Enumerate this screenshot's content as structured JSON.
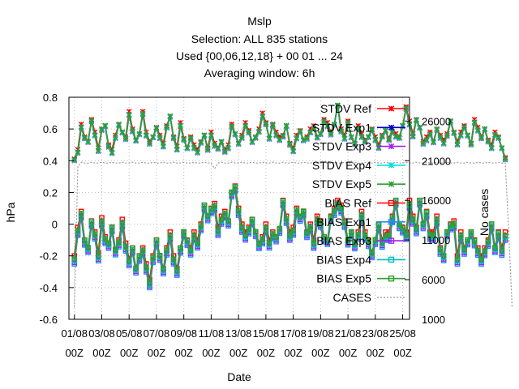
{
  "title_lines": [
    "Mslp",
    "Selection: ALL    835 stations",
    "Used {00,06,12,18} + 00 01 ... 24",
    "Averaging window:  6h"
  ],
  "chart_data": {
    "type": "line",
    "title": "Mslp",
    "xlabel": "Date",
    "ylabel": "hPa",
    "y2label": "No cases",
    "ylim": [
      -0.6,
      0.8
    ],
    "y2lim": [
      1000,
      29000
    ],
    "yticks": [
      "0.8",
      "0.6",
      "0.4",
      "0.2",
      "0",
      "-0.2",
      "-0.4",
      "-0.6"
    ],
    "y2ticks": [
      "26000",
      "21000",
      "16000",
      "11000",
      "6000",
      "1000"
    ],
    "y2tick_values": [
      26000,
      21000,
      16000,
      11000,
      6000,
      1000
    ],
    "xticks": [
      {
        "day": 1,
        "l1": "01/08",
        "l2": "00Z"
      },
      {
        "day": 3,
        "l1": "03/08",
        "l2": "00Z"
      },
      {
        "day": 5,
        "l1": "05/08",
        "l2": "00Z"
      },
      {
        "day": 7,
        "l1": "07/08",
        "l2": "00Z"
      },
      {
        "day": 9,
        "l1": "09/08",
        "l2": "00Z"
      },
      {
        "day": 11,
        "l1": "11/08",
        "l2": "00Z"
      },
      {
        "day": 13,
        "l1": "13/08",
        "l2": "00Z"
      },
      {
        "day": 15,
        "l1": "15/08",
        "l2": "00Z"
      },
      {
        "day": 17,
        "l1": "17/08",
        "l2": "00Z"
      },
      {
        "day": 19,
        "l1": "19/08",
        "l2": "00Z"
      },
      {
        "day": 21,
        "l1": "21/08",
        "l2": "00Z"
      },
      {
        "day": 23,
        "l1": "23/08",
        "l2": "00Z"
      },
      {
        "day": 25,
        "l1": "25/08",
        "l2": "00Z"
      }
    ],
    "grid": true,
    "legend_position": "top-right",
    "step_hours": 6,
    "x_start_day": 1.0,
    "stdv_ref": [
      0.41,
      0.47,
      0.63,
      0.55,
      0.52,
      0.66,
      0.58,
      0.48,
      0.6,
      0.62,
      0.5,
      0.47,
      0.56,
      0.63,
      0.58,
      0.55,
      0.71,
      0.6,
      0.53,
      0.57,
      0.71,
      0.58,
      0.52,
      0.55,
      0.61,
      0.56,
      0.51,
      0.62,
      0.68,
      0.55,
      0.49,
      0.64,
      0.54,
      0.48,
      0.55,
      0.5,
      0.47,
      0.52,
      0.56,
      0.48,
      0.58,
      0.51,
      0.48,
      0.52,
      0.47,
      0.5,
      0.63,
      0.57,
      0.51,
      0.56,
      0.64,
      0.59,
      0.52,
      0.55,
      0.6,
      0.7,
      0.64,
      0.54,
      0.63,
      0.58,
      0.55,
      0.56,
      0.62,
      0.51,
      0.48,
      0.56,
      0.59,
      0.53,
      0.55,
      0.6,
      0.62,
      0.55,
      0.57,
      0.66,
      0.64,
      0.58,
      0.63,
      0.75,
      0.6,
      0.56,
      0.65,
      0.55,
      0.51,
      0.62,
      0.57,
      0.53,
      0.55,
      0.6,
      0.55,
      0.5,
      0.56,
      0.59,
      0.54,
      0.6,
      0.57,
      0.55,
      0.62,
      0.74,
      0.65,
      0.57,
      0.66,
      0.61,
      0.52,
      0.55,
      0.58,
      0.52,
      0.6,
      0.56,
      0.53,
      0.57,
      0.65,
      0.58,
      0.52,
      0.58,
      0.62,
      0.56,
      0.51,
      0.66,
      0.61,
      0.55,
      0.6,
      0.53,
      0.5,
      0.58,
      0.55,
      0.48,
      0.42
    ],
    "bias_ref": [
      -0.2,
      -0.02,
      0.08,
      -0.1,
      -0.15,
      0.02,
      -0.05,
      -0.18,
      0.04,
      -0.08,
      -0.12,
      -0.02,
      -0.16,
      -0.1,
      0.03,
      -0.12,
      -0.22,
      -0.15,
      -0.28,
      -0.2,
      -0.15,
      -0.25,
      -0.35,
      -0.2,
      -0.1,
      -0.2,
      -0.28,
      -0.15,
      -0.05,
      -0.2,
      -0.28,
      -0.15,
      -0.05,
      -0.1,
      -0.15,
      -0.05,
      -0.1,
      0.0,
      0.12,
      0.05,
      0.1,
      0.13,
      -0.02,
      0.05,
      0.08,
      0.02,
      0.2,
      0.24,
      0.1,
      0.0,
      -0.05,
      -0.02,
      0.03,
      -0.05,
      -0.12,
      -0.08,
      0.0,
      -0.1,
      -0.05,
      -0.08,
      -0.03,
      0.15,
      0.05,
      -0.05,
      -0.02,
      0.1,
      0.05,
      0.08,
      -0.05,
      0.0,
      -0.1,
      0.05,
      0.02,
      -0.08,
      -0.1,
      0.05,
      0.1,
      0.15,
      0.12,
      0.02,
      -0.1,
      -0.05,
      -0.12,
      -0.05,
      0.08,
      -0.05,
      -0.1,
      -0.18,
      -0.1,
      0.0,
      -0.1,
      -0.05,
      -0.05,
      0.05,
      0.15,
      0.0,
      -0.02,
      -0.05,
      0.15,
      0.05,
      -0.02,
      0.15,
      0.0,
      0.08,
      -0.05,
      -0.05,
      0.05,
      -0.15,
      -0.2,
      -0.05,
      0.0,
      0.02,
      -0.2,
      -0.05,
      -0.15,
      -0.1,
      -0.05,
      -0.1,
      -0.15,
      -0.2,
      -0.15,
      -0.1,
      0.0,
      -0.15,
      -0.05,
      -0.15,
      -0.05
    ],
    "cases": [
      2500,
      20300,
      20800,
      20700,
      20700,
      20800,
      20700,
      20700,
      20800,
      20700,
      20700,
      20800,
      20700,
      20700,
      20800,
      20700,
      20700,
      20800,
      20700,
      20700,
      20800,
      20700,
      20700,
      20800,
      20700,
      20700,
      20800,
      20700,
      20700,
      20800,
      20700,
      20700,
      20800,
      20700,
      20700,
      20800,
      20700,
      20700,
      20800,
      20700,
      20700,
      20000,
      20700,
      20800,
      20700,
      20700,
      20800,
      20700,
      20700,
      20800,
      20700,
      20700,
      20800,
      20700,
      20700,
      20800,
      20700,
      20700,
      20800,
      20700,
      20700,
      20800,
      20700,
      20700,
      20800,
      20700,
      20700,
      20800,
      20700,
      20700,
      20800,
      20700,
      20700,
      20800,
      20700,
      20700,
      20800,
      20700,
      20700,
      20800,
      20700,
      20700,
      20800,
      20700,
      20700,
      20800,
      20700,
      20700,
      20800,
      20700,
      20700,
      20800,
      20700,
      20700,
      20800,
      20700,
      20700,
      20800,
      20700,
      20700,
      20800,
      20700,
      20700,
      20800,
      20700,
      20700,
      20800,
      20700,
      20700,
      20800,
      20700,
      20700,
      20800,
      20700,
      20700,
      20800,
      20700,
      20700,
      20800,
      20700,
      20700,
      20800,
      20700,
      20700,
      20800,
      20700,
      20700,
      12000,
      2500
    ],
    "offsets": {
      "stdv_exp1": -0.01,
      "stdv_exp3": -0.015,
      "stdv_exp4": -0.012,
      "stdv_exp5": -0.008,
      "bias_exp1": -0.04,
      "bias_exp3": -0.03,
      "bias_exp4": -0.02,
      "bias_exp5": -0.01
    },
    "series": [
      {
        "key": "stdv_ref",
        "name": "STDV Ref",
        "color": "#ff0000",
        "marker": "x-star",
        "axis": "y1"
      },
      {
        "key": "stdv_exp1",
        "name": "STDV Exp1",
        "color": "#0000cd",
        "marker": "x-star",
        "axis": "y1"
      },
      {
        "key": "stdv_exp3",
        "name": "STDV Exp3",
        "color": "#a020f0",
        "marker": "x-star",
        "axis": "y1"
      },
      {
        "key": "stdv_exp4",
        "name": "STDV Exp4",
        "color": "#00e0e0",
        "marker": "x-star",
        "axis": "y1"
      },
      {
        "key": "stdv_exp5",
        "name": "STDV Exp5",
        "color": "#2e9e2e",
        "marker": "x-star",
        "axis": "y1"
      },
      {
        "key": "bias_ref",
        "name": "BIAS Ref",
        "color": "#ff0000",
        "marker": "square",
        "axis": "y1"
      },
      {
        "key": "bias_exp1",
        "name": "BIAS Exp1",
        "color": "#1e90ff",
        "marker": "square",
        "axis": "y1"
      },
      {
        "key": "bias_exp3",
        "name": "BIAS Exp3",
        "color": "#a020f0",
        "marker": "square",
        "axis": "y1"
      },
      {
        "key": "bias_exp4",
        "name": "BIAS Exp4",
        "color": "#00bfbf",
        "marker": "square",
        "axis": "y1"
      },
      {
        "key": "bias_exp5",
        "name": "BIAS Exp5",
        "color": "#2e9e2e",
        "marker": "square",
        "axis": "y1"
      },
      {
        "key": "cases",
        "name": "CASES",
        "color": "#999999",
        "marker": "dashed",
        "axis": "y2"
      }
    ]
  }
}
